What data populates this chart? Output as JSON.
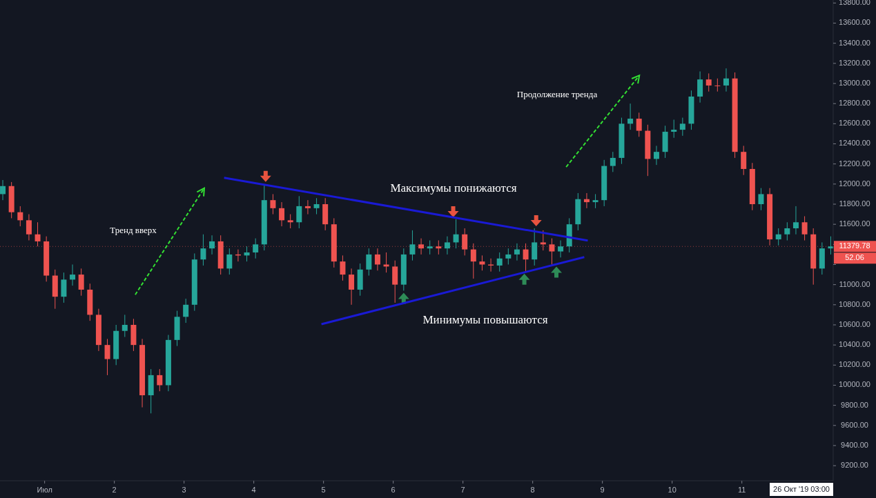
{
  "chart_data": {
    "type": "candlestick",
    "x": [
      0.4,
      0.525,
      0.65,
      0.775,
      0.9,
      1.025,
      1.15,
      1.275,
      1.4,
      1.525,
      1.65,
      1.775,
      1.9,
      2.025,
      2.15,
      2.275,
      2.4,
      2.525,
      2.65,
      2.775,
      2.9,
      3.025,
      3.15,
      3.275,
      3.4,
      3.525,
      3.65,
      3.775,
      3.9,
      4.025,
      4.15,
      4.275,
      4.4,
      4.525,
      4.65,
      4.775,
      4.9,
      5.025,
      5.15,
      5.275,
      5.4,
      5.525,
      5.65,
      5.775,
      5.9,
      6.025,
      6.15,
      6.275,
      6.4,
      6.525,
      6.65,
      6.775,
      6.9,
      7.025,
      7.15,
      7.275,
      7.4,
      7.525,
      7.65,
      7.775,
      7.9,
      8.025,
      8.15,
      8.275,
      8.4,
      8.525,
      8.65,
      8.775,
      8.9,
      9.025,
      9.15,
      9.275,
      9.4,
      9.525,
      9.65,
      9.775,
      9.9,
      10.025,
      10.15,
      10.275,
      10.4,
      10.525,
      10.65,
      10.775,
      10.9,
      11.025,
      11.15,
      11.275,
      11.4,
      11.525,
      11.65,
      11.775,
      11.9,
      12.025,
      12.15,
      12.275
    ],
    "ohlc": [
      [
        11900,
        12040,
        11840,
        11980
      ],
      [
        11980,
        12020,
        11660,
        11720
      ],
      [
        11720,
        11780,
        11580,
        11640
      ],
      [
        11640,
        11700,
        11440,
        11500
      ],
      [
        11500,
        11620,
        11380,
        11430
      ],
      [
        11430,
        11480,
        11030,
        11090
      ],
      [
        11090,
        11150,
        10760,
        10880
      ],
      [
        10880,
        11120,
        10820,
        11050
      ],
      [
        11050,
        11200,
        10990,
        11100
      ],
      [
        11100,
        11160,
        10890,
        10950
      ],
      [
        10950,
        11010,
        10640,
        10700
      ],
      [
        10700,
        10760,
        10340,
        10400
      ],
      [
        10400,
        10460,
        10100,
        10260
      ],
      [
        10260,
        10600,
        10200,
        10540
      ],
      [
        10540,
        10700,
        10480,
        10600
      ],
      [
        10600,
        10660,
        10340,
        10400
      ],
      [
        10400,
        10460,
        9780,
        9900
      ],
      [
        9900,
        10160,
        9720,
        10100
      ],
      [
        10100,
        10160,
        9940,
        10000
      ],
      [
        10000,
        10500,
        9940,
        10450
      ],
      [
        10450,
        10740,
        10390,
        10680
      ],
      [
        10680,
        10860,
        10620,
        10800
      ],
      [
        10800,
        11310,
        10740,
        11250
      ],
      [
        11250,
        11500,
        11190,
        11360
      ],
      [
        11360,
        11490,
        11300,
        11430
      ],
      [
        11430,
        11490,
        11100,
        11160
      ],
      [
        11160,
        11360,
        11100,
        11300
      ],
      [
        11300,
        11350,
        11230,
        11290
      ],
      [
        11290,
        11380,
        11230,
        11320
      ],
      [
        11320,
        11460,
        11260,
        11400
      ],
      [
        11400,
        12000,
        11340,
        11840
      ],
      [
        11840,
        11900,
        11700,
        11760
      ],
      [
        11760,
        11820,
        11580,
        11640
      ],
      [
        11640,
        11700,
        11560,
        11620
      ],
      [
        11620,
        11880,
        11560,
        11780
      ],
      [
        11780,
        11840,
        11700,
        11760
      ],
      [
        11760,
        11860,
        11700,
        11800
      ],
      [
        11800,
        11860,
        11540,
        11600
      ],
      [
        11600,
        11660,
        11170,
        11230
      ],
      [
        11230,
        11290,
        11040,
        11100
      ],
      [
        11100,
        11160,
        10800,
        10950
      ],
      [
        10950,
        11210,
        10890,
        11150
      ],
      [
        11150,
        11360,
        11090,
        11300
      ],
      [
        11300,
        11360,
        11140,
        11200
      ],
      [
        11200,
        11320,
        11120,
        11180
      ],
      [
        11180,
        11240,
        10820,
        11000
      ],
      [
        11000,
        11360,
        10940,
        11300
      ],
      [
        11300,
        11540,
        11240,
        11400
      ],
      [
        11400,
        11460,
        11300,
        11360
      ],
      [
        11360,
        11440,
        11300,
        11380
      ],
      [
        11380,
        11440,
        11300,
        11360
      ],
      [
        11360,
        11480,
        11300,
        11420
      ],
      [
        11420,
        11650,
        11360,
        11500
      ],
      [
        11500,
        11560,
        11290,
        11350
      ],
      [
        11350,
        11410,
        11060,
        11230
      ],
      [
        11230,
        11290,
        11140,
        11200
      ],
      [
        11200,
        11260,
        11130,
        11190
      ],
      [
        11190,
        11320,
        11130,
        11260
      ],
      [
        11260,
        11360,
        11200,
        11300
      ],
      [
        11300,
        11410,
        11240,
        11350
      ],
      [
        11350,
        11410,
        11120,
        11250
      ],
      [
        11250,
        11560,
        11190,
        11420
      ],
      [
        11420,
        11540,
        11340,
        11400
      ],
      [
        11400,
        11460,
        11200,
        11330
      ],
      [
        11330,
        11440,
        11270,
        11380
      ],
      [
        11380,
        11660,
        11320,
        11600
      ],
      [
        11600,
        11910,
        11540,
        11850
      ],
      [
        11850,
        11910,
        11760,
        11820
      ],
      [
        11820,
        11900,
        11760,
        11840
      ],
      [
        11840,
        12240,
        11780,
        12180
      ],
      [
        12180,
        12320,
        12120,
        12260
      ],
      [
        12260,
        12660,
        12200,
        12600
      ],
      [
        12600,
        12800,
        12540,
        12650
      ],
      [
        12650,
        12710,
        12470,
        12530
      ],
      [
        12530,
        12590,
        12080,
        12250
      ],
      [
        12250,
        12380,
        12190,
        12320
      ],
      [
        12320,
        12580,
        12260,
        12520
      ],
      [
        12520,
        12640,
        12460,
        12540
      ],
      [
        12540,
        12660,
        12480,
        12600
      ],
      [
        12600,
        12930,
        12540,
        12870
      ],
      [
        12870,
        13120,
        12810,
        13040
      ],
      [
        13040,
        13100,
        12920,
        12980
      ],
      [
        12980,
        13050,
        12920,
        12980
      ],
      [
        12980,
        13150,
        12920,
        13050
      ],
      [
        13050,
        13110,
        12260,
        12320
      ],
      [
        12320,
        12380,
        12090,
        12150
      ],
      [
        12150,
        12210,
        11740,
        11800
      ],
      [
        11800,
        11960,
        11740,
        11900
      ],
      [
        11900,
        11960,
        11390,
        11450
      ],
      [
        11450,
        11560,
        11390,
        11500
      ],
      [
        11500,
        11620,
        11440,
        11560
      ],
      [
        11560,
        11780,
        11500,
        11620
      ],
      [
        11620,
        11680,
        11440,
        11500
      ],
      [
        11500,
        11560,
        11000,
        11160
      ],
      [
        11160,
        11420,
        11100,
        11360
      ],
      [
        11360,
        11480,
        11300,
        11380
      ]
    ],
    "colors": [
      "#26a69a",
      "#ef5350",
      "#ef5350",
      "#ef5350",
      "#ef5350",
      "#ef5350",
      "#ef5350",
      "#26a69a",
      "#26a69a",
      "#ef5350",
      "#ef5350",
      "#ef5350",
      "#ef5350",
      "#26a69a",
      "#26a69a",
      "#ef5350",
      "#ef5350",
      "#26a69a",
      "#ef5350",
      "#26a69a",
      "#26a69a",
      "#26a69a",
      "#26a69a",
      "#26a69a",
      "#26a69a",
      "#ef5350",
      "#26a69a",
      "#ef5350",
      "#26a69a",
      "#26a69a",
      "#26a69a",
      "#ef5350",
      "#ef5350",
      "#ef5350",
      "#26a69a",
      "#ef5350",
      "#26a69a",
      "#ef5350",
      "#ef5350",
      "#ef5350",
      "#ef5350",
      "#26a69a",
      "#26a69a",
      "#ef5350",
      "#ef5350",
      "#ef5350",
      "#26a69a",
      "#26a69a",
      "#ef5350",
      "#26a69a",
      "#ef5350",
      "#26a69a",
      "#26a69a",
      "#ef5350",
      "#ef5350",
      "#ef5350",
      "#ef5350",
      "#26a69a",
      "#26a69a",
      "#26a69a",
      "#ef5350",
      "#26a69a",
      "#ef5350",
      "#ef5350",
      "#26a69a",
      "#26a69a",
      "#26a69a",
      "#ef5350",
      "#26a69a",
      "#26a69a",
      "#26a69a",
      "#26a69a",
      "#26a69a",
      "#ef5350",
      "#ef5350",
      "#26a69a",
      "#26a69a",
      "#26a69a",
      "#26a69a",
      "#26a69a",
      "#26a69a",
      "#ef5350",
      "#ef5350",
      "#26a69a",
      "#ef5350",
      "#ef5350",
      "#ef5350",
      "#26a69a",
      "#ef5350",
      "#26a69a",
      "#26a69a",
      "#26a69a",
      "#ef5350",
      "#ef5350",
      "#26a69a",
      "#26a69a"
    ],
    "series": [
      {
        "type": "line",
        "color": "#1a1ad4",
        "x": [
          3.574,
          8.79
        ],
        "values": [
          12063,
          11438
        ]
      },
      {
        "type": "line",
        "color": "#1a1ad4",
        "x": [
          4.97,
          8.74
        ],
        "values": [
          10607,
          11274
        ]
      }
    ],
    "xlim": [
      0.36,
      12.31
    ],
    "xticks": [
      {
        "value": 1,
        "label": "Июл"
      },
      2,
      3,
      4,
      5,
      6,
      7,
      8,
      9,
      10,
      11
    ],
    "ylim": [
      9050,
      13830
    ],
    "yticks": [
      {
        "value": 9200,
        "label": "9200.00"
      },
      {
        "value": 9400,
        "label": "9400.00"
      },
      {
        "value": 9600,
        "label": "9600.00"
      },
      {
        "value": 9800,
        "label": "9800.00"
      },
      {
        "value": 10000,
        "label": "10000.00"
      },
      {
        "value": 10200,
        "label": "10200.00"
      },
      {
        "value": 10400,
        "label": "10400.00"
      },
      {
        "value": 10600,
        "label": "10600.00"
      },
      {
        "value": 10800,
        "label": "10800.00"
      },
      {
        "value": 11000,
        "label": "11000.00"
      },
      {
        "value": 11200,
        "label": null
      },
      {
        "value": 11400,
        "label": null
      },
      {
        "value": 11600,
        "label": "11600.00"
      },
      {
        "value": 11800,
        "label": "11800.00"
      },
      {
        "value": 12000,
        "label": "12000.00"
      },
      {
        "value": 12200,
        "label": "12200.00"
      },
      {
        "value": 12400,
        "label": "12400.00"
      },
      {
        "value": 12600,
        "label": "12600.00"
      },
      {
        "value": 12800,
        "label": "12800.00"
      },
      {
        "value": 13000,
        "label": "13000.00"
      },
      {
        "value": 13200,
        "label": "13200.00"
      },
      {
        "value": 13400,
        "label": "13400.00"
      },
      {
        "value": 13600,
        "label": "13600.00"
      },
      {
        "value": 13800,
        "label": "13800.00"
      }
    ],
    "ref_lines": [
      {
        "axis": "y",
        "value": 11379.78,
        "label": "11379.78",
        "color": "#ef5350",
        "line_style": "dotted"
      }
    ],
    "annotations": [
      "Тренд вверх",
      "Максимумы понижаются",
      "Минимумы повышаются",
      "Продолжение тренда",
      "52.06",
      "26 Окт '19 03:00"
    ]
  }
}
